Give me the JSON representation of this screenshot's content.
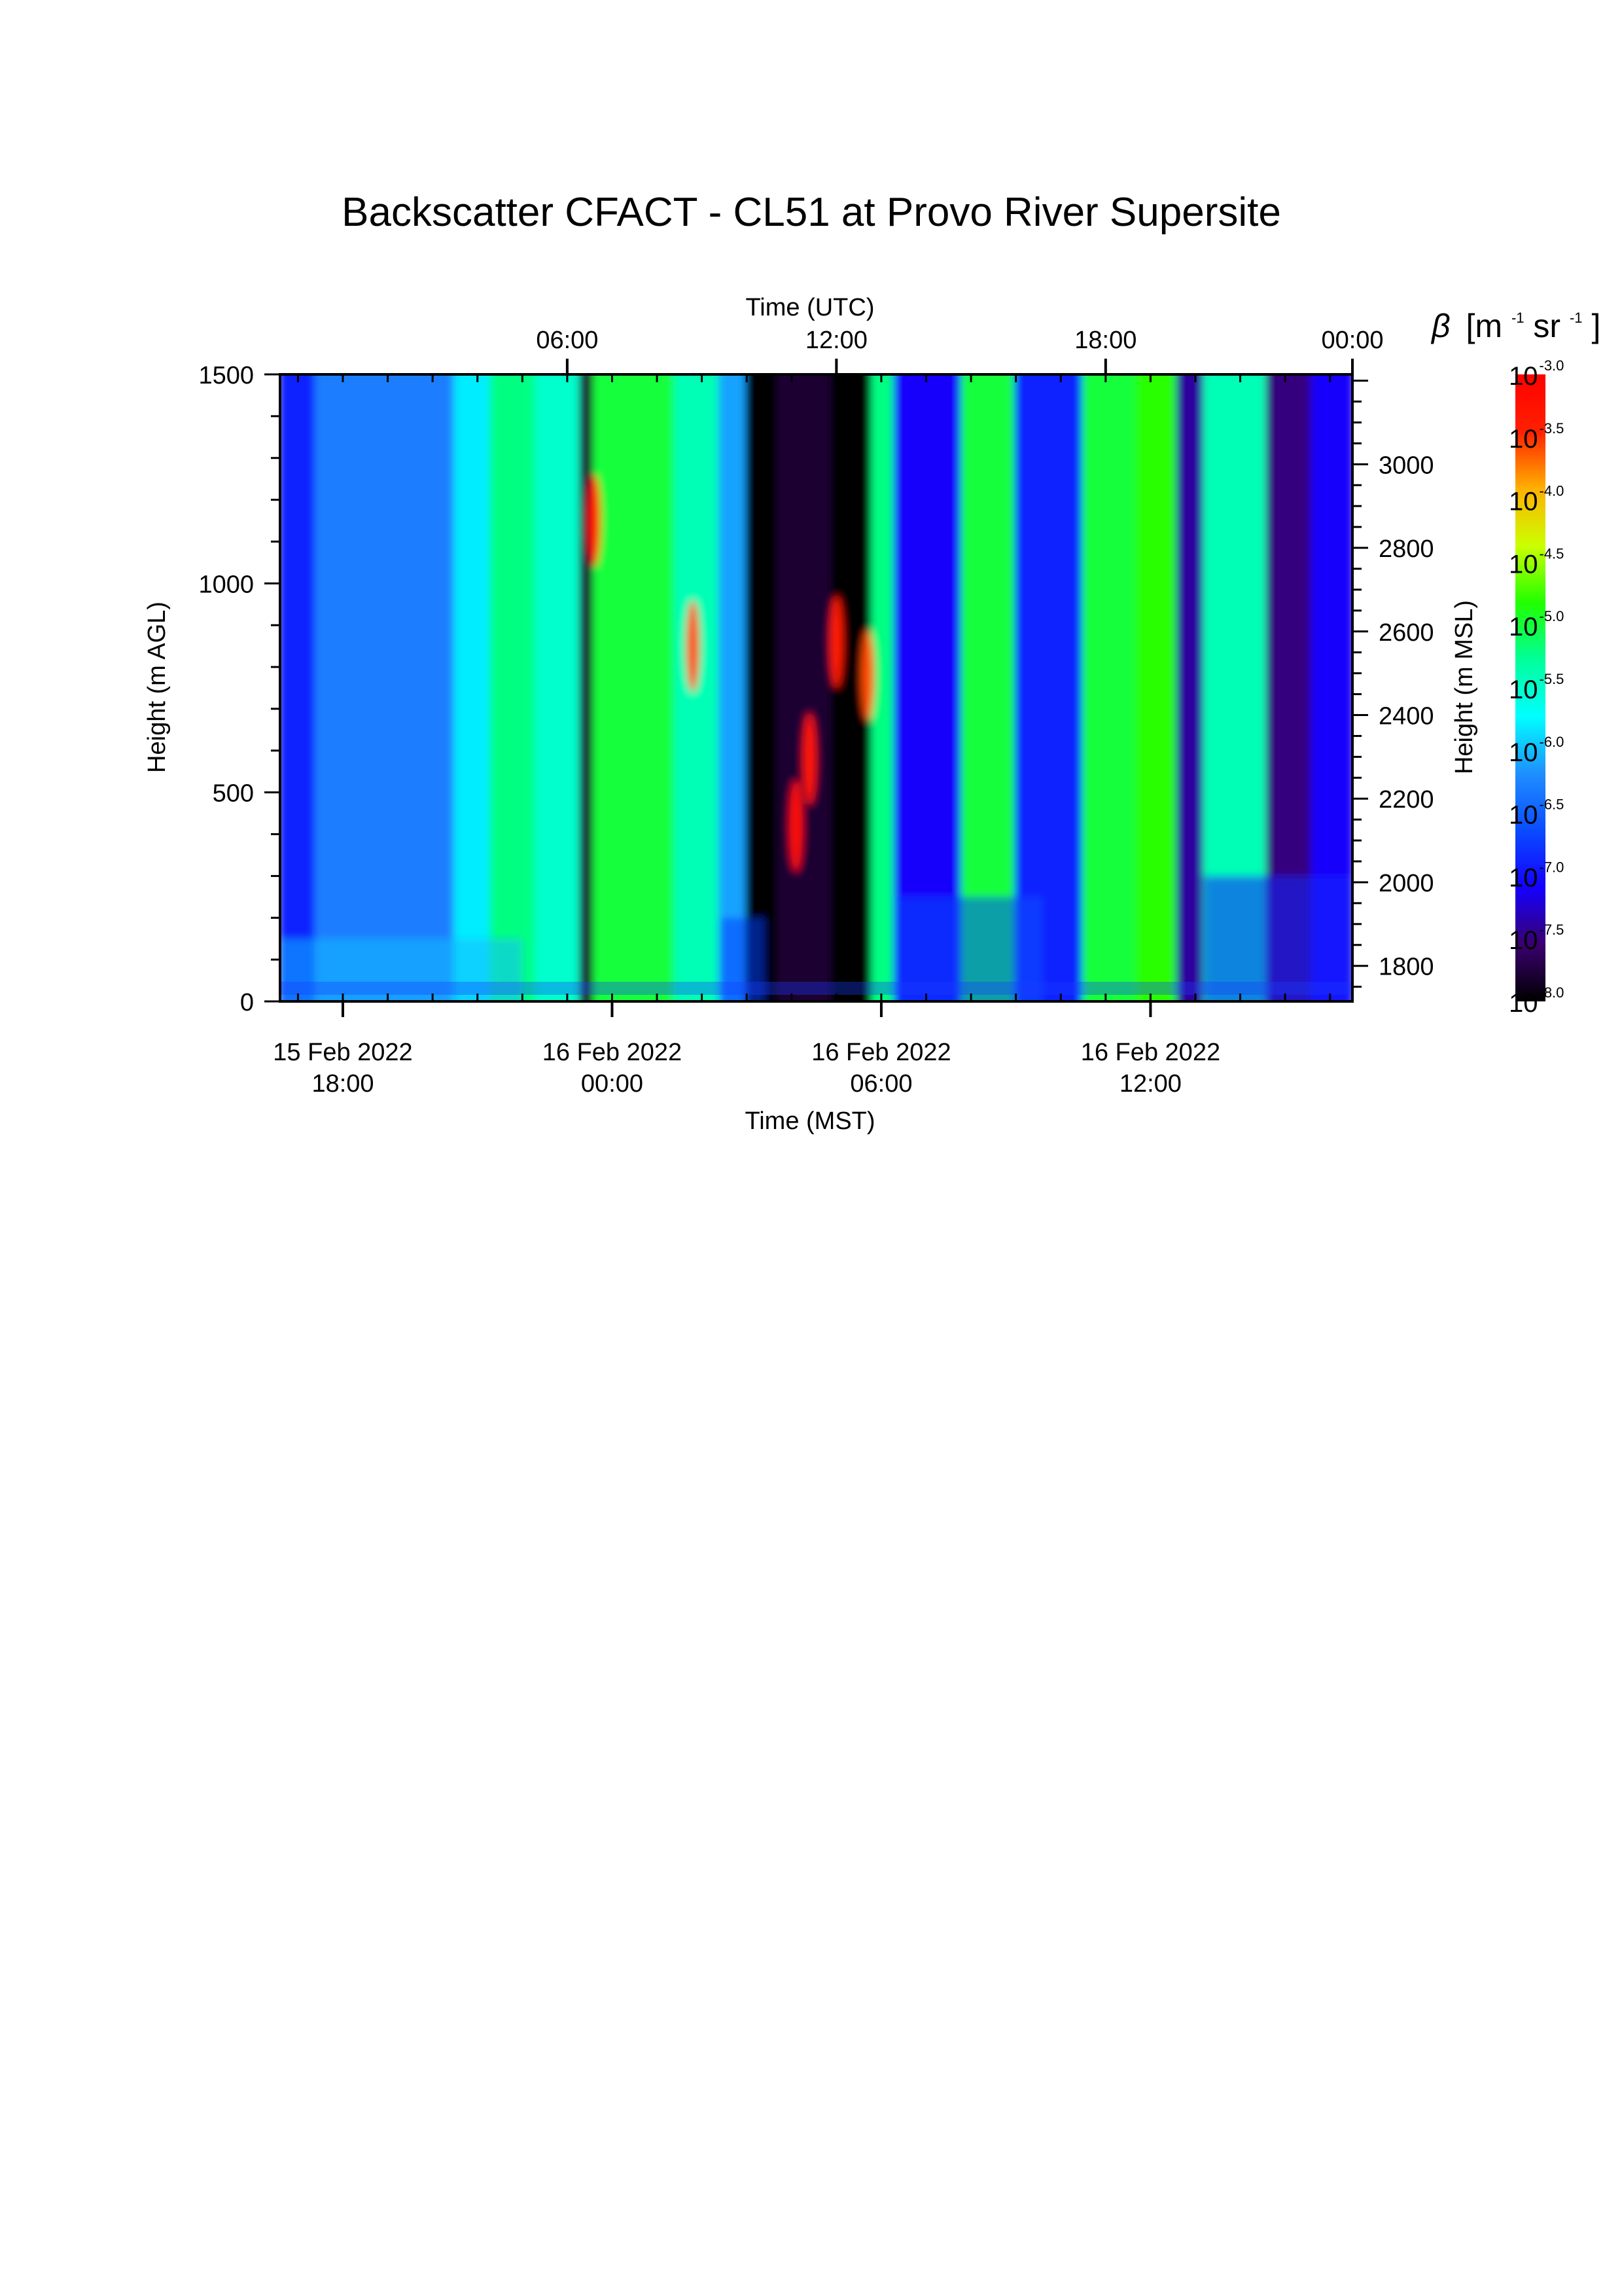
{
  "chart_data": {
    "type": "heatmap",
    "title": "Backscatter CFACT - CL51 at Provo River Supersite",
    "xlabel_top": "Time (UTC)",
    "xlabel_bottom": "Time (MST)",
    "ylabel_left": "Height (m AGL)",
    "ylabel_right": "Height (m MSL)",
    "colorbar_label": {
      "symbol": "β",
      "unit_open": "[m",
      "exp1": "-1",
      "unit_mid": " sr",
      "exp2": "-1",
      "unit_close": "]"
    },
    "x_range_hours_mst": [
      16.6,
      40.5
    ],
    "y_range_m_agl": [
      0,
      1500
    ],
    "y_right_range_m_msl": [
      1715,
      3215
    ],
    "bottom_ticks": [
      {
        "hour": 18,
        "line1": "15 Feb 2022",
        "line2": "18:00"
      },
      {
        "hour": 24,
        "line1": "16 Feb 2022",
        "line2": "00:00"
      },
      {
        "hour": 30,
        "line1": "16 Feb 2022",
        "line2": "06:00"
      },
      {
        "hour": 36,
        "line1": "16 Feb 2022",
        "line2": "12:00"
      }
    ],
    "top_ticks": [
      {
        "hour": 23,
        "label": "06:00"
      },
      {
        "hour": 29,
        "label": "12:00"
      },
      {
        "hour": 35,
        "label": "18:00"
      },
      {
        "hour": 41,
        "label": "00:00"
      }
    ],
    "left_ticks": [
      0,
      500,
      1000,
      1500
    ],
    "right_ticks": [
      1800,
      2000,
      2200,
      2400,
      2600,
      2800,
      3000
    ],
    "colorbar": {
      "base": "10",
      "exponents": [
        "-3.0",
        "-3.5",
        "-4.0",
        "-4.5",
        "-5.0",
        "-5.5",
        "-6.0",
        "-6.5",
        "-7.0",
        "-7.5",
        "-8.0"
      ],
      "log_range": [
        -8.0,
        -3.0
      ],
      "colors": [
        "#000000",
        "#3a0070",
        "#1400ff",
        "#0a4cff",
        "#1f8fff",
        "#00ffff",
        "#00ff99",
        "#22ff00",
        "#ccff00",
        "#ffb000",
        "#ff2000",
        "#ff0000"
      ]
    },
    "bands": [
      {
        "start": 16.6,
        "end": 17.4,
        "level": -6.9
      },
      {
        "start": 17.4,
        "end": 20.5,
        "level": -6.3
      },
      {
        "start": 20.5,
        "end": 21.3,
        "level": -5.8
      },
      {
        "start": 21.3,
        "end": 22.3,
        "level": -5.2
      },
      {
        "start": 22.3,
        "end": 23.3,
        "level": -5.5
      },
      {
        "start": 23.3,
        "end": 23.6,
        "level": -7.8
      },
      {
        "start": 23.6,
        "end": 25.4,
        "level": -5.0
      },
      {
        "start": 25.4,
        "end": 26.4,
        "level": -5.4
      },
      {
        "start": 26.4,
        "end": 27.0,
        "level": -6.1
      },
      {
        "start": 27.0,
        "end": 27.7,
        "level": -8.0
      },
      {
        "start": 27.7,
        "end": 28.9,
        "level": -7.8
      },
      {
        "start": 28.9,
        "end": 29.8,
        "level": -8.0
      },
      {
        "start": 29.8,
        "end": 30.3,
        "level": -5.2
      },
      {
        "start": 30.3,
        "end": 31.8,
        "level": -7.1
      },
      {
        "start": 31.8,
        "end": 33.0,
        "level": -5.0
      },
      {
        "start": 33.0,
        "end": 34.5,
        "level": -6.9
      },
      {
        "start": 34.5,
        "end": 35.7,
        "level": -5.0
      },
      {
        "start": 35.7,
        "end": 36.6,
        "level": -4.8
      },
      {
        "start": 36.6,
        "end": 37.2,
        "level": -7.4
      },
      {
        "start": 37.2,
        "end": 38.6,
        "level": -5.4
      },
      {
        "start": 38.6,
        "end": 39.6,
        "level": -7.5
      },
      {
        "start": 39.6,
        "end": 40.5,
        "level": -7.1
      }
    ],
    "low_layer": [
      {
        "start": 16.6,
        "end": 22.0,
        "top_m": 150,
        "level": -6.0
      },
      {
        "start": 26.4,
        "end": 27.4,
        "top_m": 200,
        "level": -6.7
      },
      {
        "start": 30.3,
        "end": 33.6,
        "top_m": 250,
        "level": -6.6
      },
      {
        "start": 37.2,
        "end": 40.5,
        "top_m": 300,
        "level": -6.9
      }
    ],
    "cloud_layers": [
      {
        "hour": 23.6,
        "height_m": 1150,
        "level": -3.4
      },
      {
        "hour": 25.8,
        "height_m": 850,
        "level": -3.6
      },
      {
        "hour": 28.1,
        "height_m": 420,
        "level": -3.2
      },
      {
        "hour": 28.4,
        "height_m": 580,
        "level": -3.3
      },
      {
        "hour": 29.0,
        "height_m": 860,
        "level": -3.4
      },
      {
        "hour": 29.7,
        "height_m": 780,
        "level": -3.6
      }
    ]
  }
}
